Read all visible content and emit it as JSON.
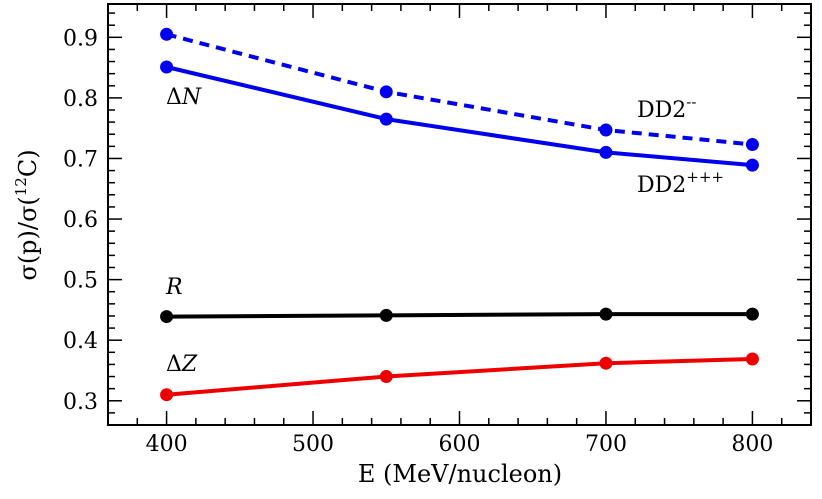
{
  "chart_data": {
    "type": "line",
    "xlabel": "E (MeV/nucleon)",
    "ylabel_parts": {
      "base": "σ(p)/σ(",
      "sup": "12",
      "tail": "C)"
    },
    "xlim": [
      360,
      840
    ],
    "ylim": [
      0.26,
      0.955
    ],
    "xticks": [
      400,
      500,
      600,
      700,
      800
    ],
    "yticks": [
      0.3,
      0.4,
      0.5,
      0.6,
      0.7,
      0.8,
      0.9
    ],
    "x": [
      400,
      550,
      700,
      800
    ],
    "series": [
      {
        "name": "DD2---",
        "role": "ΔN dashed",
        "color": "#0000ee",
        "dash": true,
        "values": [
          0.905,
          0.81,
          0.747,
          0.723
        ]
      },
      {
        "name": "DD2+++",
        "role": "ΔN solid",
        "color": "#0000ee",
        "dash": false,
        "values": [
          0.851,
          0.765,
          0.71,
          0.689
        ]
      },
      {
        "name": "R",
        "color": "#000000",
        "dash": false,
        "values": [
          0.439,
          0.441,
          0.443,
          0.443
        ]
      },
      {
        "name": "ΔZ",
        "color": "#ee0000",
        "dash": false,
        "values": [
          0.31,
          0.34,
          0.362,
          0.369
        ]
      }
    ],
    "annotations": {
      "dn": {
        "delta": "Δ",
        "letter": "N"
      },
      "r": {
        "letter": "R"
      },
      "dz": {
        "delta": "Δ",
        "letter": "Z"
      },
      "dd2_minus": {
        "base": "DD2",
        "sup": "--"
      },
      "dd2_plus": {
        "base": "DD2",
        "sup": "+++"
      }
    }
  }
}
